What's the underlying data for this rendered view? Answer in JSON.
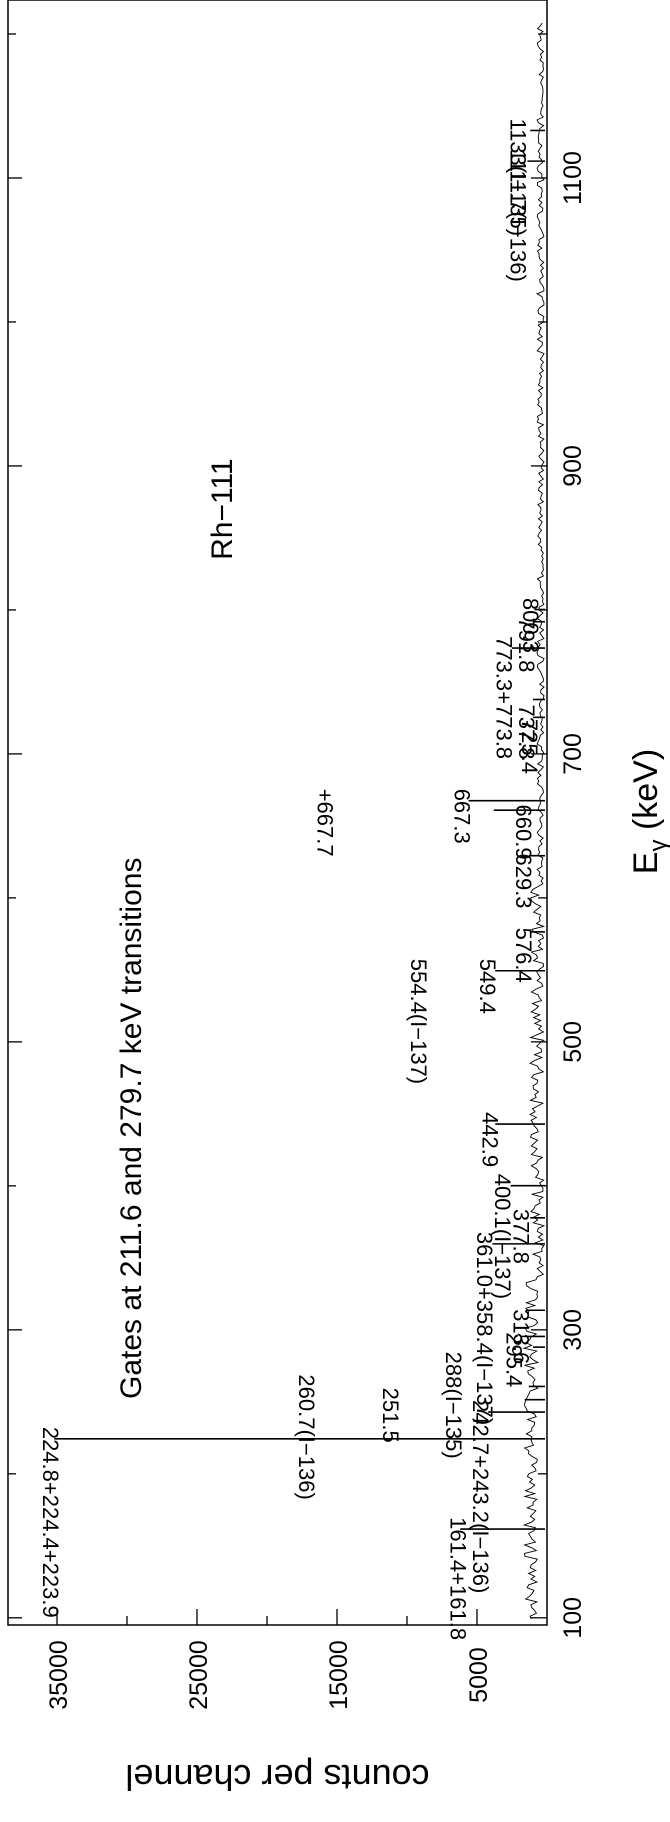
{
  "chart_data": {
    "type": "line",
    "title": "Gates at 211.6 and 279.7 keV transitions",
    "subtitle": "Rh−111",
    "xlabel": "E",
    "xlabel_sub": "γ",
    "xlabel_unit": " (keV)",
    "ylabel": "counts per channel",
    "xlim": [
      95,
      1225
    ],
    "ylim": [
      0,
      38500
    ],
    "x_ticks": [
      100,
      300,
      500,
      700,
      900,
      1100
    ],
    "y_ticks": [
      5000,
      15000,
      25000,
      35000
    ],
    "grid": false,
    "orientation": "rotated-90",
    "series": [
      {
        "peaks": [
          {
            "x": 161.6,
            "y": 6200
          },
          {
            "x": 224.3,
            "y": 35200
          },
          {
            "x": 242.9,
            "y": 4200
          },
          {
            "x": 251.5,
            "y": 1600
          },
          {
            "x": 260.7,
            "y": 1300
          },
          {
            "x": 288.0,
            "y": 1000
          },
          {
            "x": 295.4,
            "y": 1900
          },
          {
            "x": 313.6,
            "y": 1500
          },
          {
            "x": 359.7,
            "y": 3900
          },
          {
            "x": 377.8,
            "y": 1200
          },
          {
            "x": 400.1,
            "y": 2600
          },
          {
            "x": 442.9,
            "y": 3700
          },
          {
            "x": 549.4,
            "y": 3700
          },
          {
            "x": 576.4,
            "y": 1200
          },
          {
            "x": 629.3,
            "y": 1200
          },
          {
            "x": 660.9,
            "y": 3800
          },
          {
            "x": 667.5,
            "y": 5600
          },
          {
            "x": 725.4,
            "y": 1000
          },
          {
            "x": 737.8,
            "y": 1000
          },
          {
            "x": 773.5,
            "y": 2500
          },
          {
            "x": 791.8,
            "y": 1000
          },
          {
            "x": 800.3,
            "y": 900
          },
          {
            "x": 1111.7,
            "y": 1400
          },
          {
            "x": 1133.0,
            "y": 1200
          }
        ]
      }
    ],
    "annotations": [
      {
        "text": "161.4+161.8",
        "x": 161.6,
        "y": 5900
      },
      {
        "text": "224.8+224.4+223.9",
        "x": 224.3,
        "y": 35000
      },
      {
        "text": "242.7+243.2(I−136)",
        "x": 242.9,
        "y": 4300
      },
      {
        "text": "251.5",
        "x": 251.5,
        "y": 10700
      },
      {
        "text": "260.7(I−136)",
        "x": 260.7,
        "y": 16700
      },
      {
        "text": "288(I−135)",
        "x": 276.5,
        "y": 6200
      },
      {
        "text": "295.4",
        "x": 290.0,
        "y": 1900
      },
      {
        "text": "313.6",
        "x": 306.0,
        "y": 1400
      },
      {
        "text": "361.0+358.4(I−137)",
        "x": 359.7,
        "y": 4000
      },
      {
        "text": "377.8",
        "x": 375.7,
        "y": 1400
      },
      {
        "text": "400.1(I−137)",
        "x": 400.1,
        "y": 2700
      },
      {
        "text": "442.9",
        "x": 442.9,
        "y": 3600
      },
      {
        "text": "549.4",
        "x": 549.4,
        "y": 3800
      },
      {
        "text": "554.4(I−137)",
        "x": 549.4,
        "y": 8700
      },
      {
        "text": "576.4",
        "x": 571.0,
        "y": 1200
      },
      {
        "text": "629.3",
        "x": 622.5,
        "y": 1200
      },
      {
        "text": "660.9",
        "x": 656.5,
        "y": 1200
      },
      {
        "text": "667.3",
        "x": 667.5,
        "y": 5600
      },
      {
        "text": "+667.7",
        "x": 667.5,
        "y": 15400
      },
      {
        "text": "725.4",
        "x": 716.0,
        "y": 800
      },
      {
        "text": "737.8",
        "x": 726.0,
        "y": 1000
      },
      {
        "text": "773.3+773.8",
        "x": 773.5,
        "y": 2600
      },
      {
        "text": "791.8",
        "x": 786.5,
        "y": 1000
      },
      {
        "text": "800.3",
        "x": 800.0,
        "y": 700
      },
      {
        "text": "1111.7(I−136)",
        "x": 1111.7,
        "y": 1600
      },
      {
        "text": "1133(I−135)",
        "x": 1133.0,
        "y": 1600
      }
    ]
  }
}
